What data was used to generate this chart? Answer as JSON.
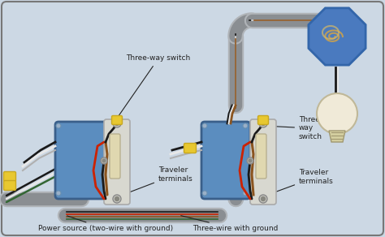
{
  "bg_color": "#ccd8e4",
  "border_color": "#777777",
  "labels": {
    "switch1": "Three-way switch",
    "switch2": "Three-\nway\nswitch",
    "traveler1": "Traveler\nterminals",
    "traveler2": "Traveler\nterminals",
    "power": "Power source (two-wire with ground)",
    "three_wire": "Three-wire with ground"
  },
  "switch_box_color": "#5b8dbf",
  "switch_plate_color": "#d8d8d0",
  "switch_lever_color": "#e0d8b0",
  "wire_black": "#1a1a1a",
  "wire_white": "#e8e8e8",
  "wire_red": "#cc2200",
  "wire_brown": "#8B5520",
  "wire_green": "#336633",
  "conduit_color": "#b0b4b8",
  "conduit_inner": "#8a8e92",
  "octagon_color": "#4a7abf",
  "octagon_edge": "#3366aa",
  "bulb_body": "#f0ead8",
  "bulb_base": "#d4cfa0",
  "wire_nut": "#e8c830",
  "wire_nut_edge": "#c8a820",
  "label_font_size": 6.5,
  "annotation_color": "#222222"
}
